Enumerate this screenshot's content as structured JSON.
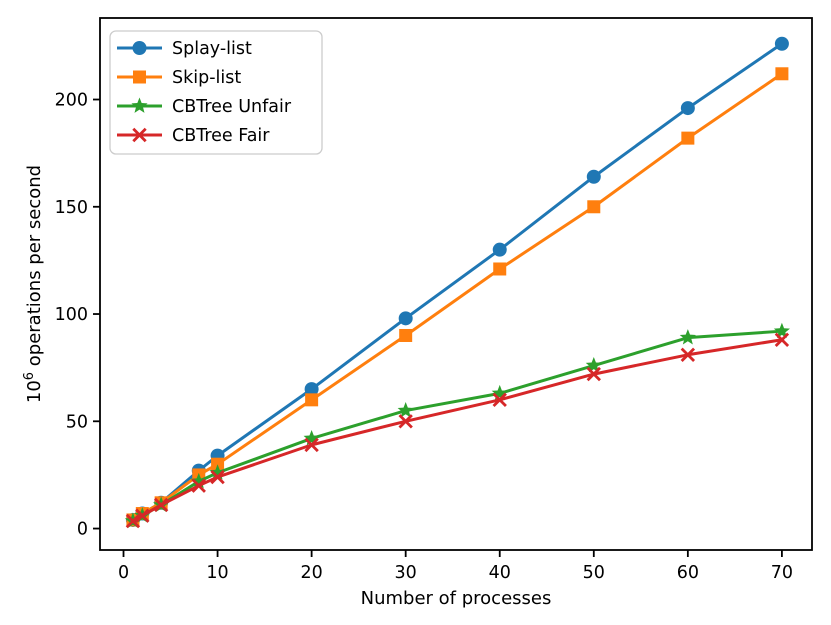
{
  "figure": {
    "background": "#ffffff",
    "spine_color": "#000000",
    "tick_color": "#000000",
    "legend_border_color": "#cccccc",
    "legend_background": "#ffffff"
  },
  "chart_data": {
    "type": "line",
    "title": "",
    "xlabel": "Number of processes",
    "ylabel": {
      "prefix": "10",
      "superscript": "6",
      "suffix": " operations per second",
      "plain": "10^6 operations per second"
    },
    "x": [
      1,
      2,
      4,
      8,
      10,
      20,
      30,
      40,
      50,
      60,
      70
    ],
    "series": [
      {
        "name": "Splay-list",
        "color": "#1f77b4",
        "marker": "circle",
        "values": [
          4,
          7,
          12,
          27,
          34,
          65,
          98,
          130,
          164,
          196,
          226
        ]
      },
      {
        "name": "Skip-list",
        "color": "#ff7f0e",
        "marker": "square",
        "values": [
          4,
          7,
          12,
          25,
          30,
          60,
          90,
          121,
          150,
          182,
          212
        ]
      },
      {
        "name": "CBTree Unfair",
        "color": "#2ca02c",
        "marker": "star",
        "values": [
          3.5,
          6,
          11,
          22,
          26,
          42,
          55,
          63,
          76,
          89,
          92
        ]
      },
      {
        "name": "CBTree Fair",
        "color": "#d62728",
        "marker": "x",
        "values": [
          3.5,
          6,
          11,
          20,
          24,
          39,
          50,
          60,
          72,
          81,
          88
        ]
      }
    ],
    "xticks": [
      0,
      10,
      20,
      30,
      40,
      50,
      60,
      70
    ],
    "yticks": [
      0,
      50,
      100,
      150,
      200
    ],
    "xlim": [
      -2.5,
      73.2
    ],
    "ylim": [
      -10,
      238
    ],
    "grid": false,
    "legend_position": "upper left"
  }
}
